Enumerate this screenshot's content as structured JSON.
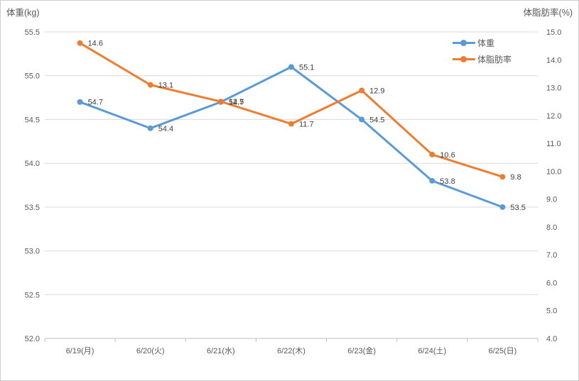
{
  "window": {
    "background": "#ffffff",
    "border_color": "#d0cece"
  },
  "chart_data": {
    "type": "line",
    "title": "",
    "categories": [
      "6/19(月)",
      "6/20(火)",
      "6/21(水)",
      "6/22(木)",
      "6/23(金)",
      "6/24(土)",
      "6/25(日)"
    ],
    "series": [
      {
        "key": "weight",
        "name": "体重",
        "color": "#5B9BD5",
        "axis": "left",
        "values": [
          54.7,
          54.4,
          54.7,
          55.1,
          54.5,
          53.8,
          53.5
        ],
        "point_labels": [
          "54.7",
          "54.4",
          "54.7",
          "55.1",
          "54.5",
          "53.8",
          "53.5"
        ]
      },
      {
        "key": "body_fat",
        "name": "体脂肪率",
        "color": "#ED7D31",
        "axis": "right",
        "values": [
          14.6,
          13.1,
          12.5,
          11.7,
          12.9,
          10.6,
          9.8
        ],
        "point_labels": [
          "14.6",
          "13.1",
          "12.5",
          "11.7",
          "12.9",
          "10.6",
          "9.8"
        ]
      }
    ],
    "axes": {
      "left": {
        "title": "体重(kg)",
        "min": 52.0,
        "max": 55.5,
        "step": 0.5,
        "tick_labels": [
          "55.5",
          "55.0",
          "54.5",
          "54.0",
          "53.5",
          "53.0",
          "52.5",
          "52.0"
        ]
      },
      "right": {
        "title": "体脂肪率(%)",
        "min": 4.0,
        "max": 15.0,
        "step": 1.0,
        "tick_labels": [
          "15.0",
          "14.0",
          "13.0",
          "12.0",
          "11.0",
          "10.0",
          "9.0",
          "8.0",
          "7.0",
          "6.0",
          "5.0",
          "4.0"
        ]
      }
    },
    "legend": {
      "position": "right-top",
      "entries": [
        "体重",
        "体脂肪率"
      ]
    },
    "grid": true,
    "colors": {
      "gridline": "#D9D9D9",
      "axis_line": "#BFBFBF",
      "tick_label": "#595959",
      "data_label": "#404040",
      "axis_title": "#595959",
      "legend_text": "#595959"
    }
  }
}
